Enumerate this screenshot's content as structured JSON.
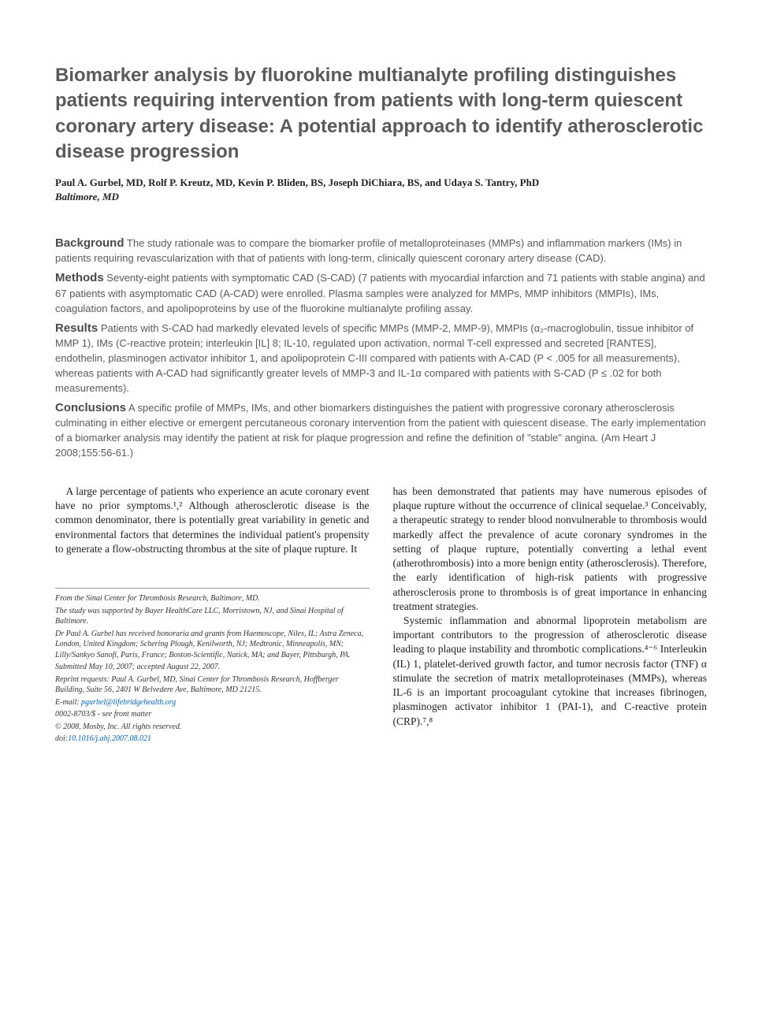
{
  "title": "Biomarker analysis by fluorokine multianalyte profiling distinguishes patients requiring intervention from patients with long-term quiescent coronary artery disease: A potential approach to identify atherosclerotic disease progression",
  "authors": "Paul A. Gurbel, MD, Rolf P. Kreutz, MD, Kevin P. Bliden, BS, Joseph DiChiara, BS, and Udaya S. Tantry, PhD",
  "affiliation": "Baltimore, MD",
  "abstract": {
    "background": {
      "label": "Background",
      "text": "The study rationale was to compare the biomarker profile of metalloproteinases (MMPs) and inflammation markers (IMs) in patients requiring revascularization with that of patients with long-term, clinically quiescent coronary artery disease (CAD)."
    },
    "methods": {
      "label": "Methods",
      "text": "Seventy-eight patients with symptomatic CAD (S-CAD) (7 patients with myocardial infarction and 71 patients with stable angina) and 67 patients with asymptomatic CAD (A-CAD) were enrolled. Plasma samples were analyzed for MMPs, MMP inhibitors (MMPIs), IMs, coagulation factors, and apolipoproteins by use of the fluorokine multianalyte profiling assay."
    },
    "results": {
      "label": "Results",
      "text": "Patients with S-CAD had markedly elevated levels of specific MMPs (MMP-2, MMP-9), MMPIs (α₂-macroglobulin, tissue inhibitor of MMP 1), IMs (C-reactive protein; interleukin [IL] 8; IL-10, regulated upon activation, normal T-cell expressed and secreted [RANTES], endothelin, plasminogen activator inhibitor 1, and apolipoprotein C-III compared with patients with A-CAD (P < .005 for all measurements), whereas patients with A-CAD had significantly greater levels of MMP-3 and IL-1α compared with patients with S-CAD (P ≤ .02 for both measurements)."
    },
    "conclusions": {
      "label": "Conclusions",
      "text": "A specific profile of MMPs, IMs, and other biomarkers distinguishes the patient with progressive coronary atherosclerosis culminating in either elective or emergent percutaneous coronary intervention from the patient with quiescent disease. The early implementation of a biomarker analysis may identify the patient at risk for plaque progression and refine the definition of \"stable\" angina. (Am Heart J 2008;155:56-61.)"
    }
  },
  "body": {
    "col1": {
      "p1": "A large percentage of patients who experience an acute coronary event have no prior symptoms.¹,² Although atherosclerotic disease is the common denominator, there is potentially great variability in genetic and environmental factors that determines the individual patient's propensity to generate a flow-obstructing thrombus at the site of plaque rupture. It"
    },
    "col2": {
      "p1": "has been demonstrated that patients may have numerous episodes of plaque rupture without the occurrence of clinical sequelae.³ Conceivably, a therapeutic strategy to render blood nonvulnerable to thrombosis would markedly affect the prevalence of acute coronary syndromes in the setting of plaque rupture, potentially converting a lethal event (atherothrombosis) into a more benign entity (atherosclerosis). Therefore, the early identification of high-risk patients with progressive atherosclerosis prone to thrombosis is of great importance in enhancing treatment strategies.",
      "p2": "Systemic inflammation and abnormal lipoprotein metabolism are important contributors to the progression of atherosclerotic disease leading to plaque instability and thrombotic complications.⁴⁻⁶ Interleukin (IL) 1, platelet-derived growth factor, and tumor necrosis factor (TNF) α stimulate the secretion of matrix metalloproteinases (MMPs), whereas IL-6 is an important procoagulant cytokine that increases fibrinogen, plasminogen activator inhibitor 1 (PAI-1), and C-reactive protein (CRP).⁷,⁸"
    }
  },
  "footnotes": {
    "f1": "From the Sinai Center for Thrombosis Research, Baltimore, MD.",
    "f2": "The study was supported by Bayer HealthCare LLC, Morristown, NJ, and Sinai Hospital of Baltimore.",
    "f3": "Dr Paul A. Gurbel has received honoraria and grants from Haemoscope, Niles, IL; Astra Zeneca, London, United Kingdom; Schering Plough, Kenilworth, NJ; Medtronic, Minneapolis, MN; Lilly/Sankyo Sanofi, Paris, France; Boston-Scientific, Natick, MA; and Bayer, Pittsburgh, PA.",
    "f4": "Submitted May 10, 2007; accepted August 22, 2007.",
    "f5": "Reprint requests: Paul A. Gurbel, MD, Sinai Center for Thrombosis Research, Hoffberger Building, Suite 56, 2401 W Belvedere Ave, Baltimore, MD 21215.",
    "email_label": "E-mail: ",
    "email": "pgurbel@lifebridgehealth.org",
    "f6": "0002-8703/$ - see front matter",
    "f7": "© 2008, Mosby, Inc. All rights reserved.",
    "doi_label": "doi:",
    "doi": "10.1016/j.ahj.2007.08.021"
  }
}
